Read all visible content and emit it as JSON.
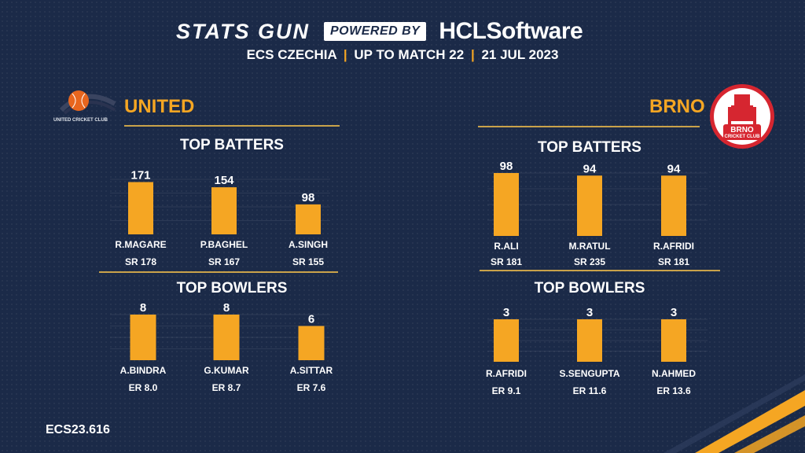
{
  "header": {
    "brand": "STATS GUN",
    "powered_by": "POWERED BY",
    "sponsor": "HCLSoftware",
    "subtitle_parts": [
      "ECS CZECHIA",
      "UP TO MATCH 22",
      "21 JUL 2023"
    ],
    "separator": "|"
  },
  "teams": {
    "left": {
      "name": "UNITED",
      "logo_text": "UNITED CRICKET CLUB"
    },
    "right": {
      "name": "BRNO",
      "logo_text_top": "BRNO",
      "logo_text_bottom": "CRICKET CLUB"
    }
  },
  "sections": {
    "batters_title": "TOP BATTERS",
    "bowlers_title": "TOP BOWLERS"
  },
  "footer": {
    "code": "ECS23.616"
  },
  "colors": {
    "background": "#1b2a48",
    "bar": "#f5a623",
    "accent": "#f5a623",
    "rule": "#c9a24a"
  },
  "chart_data": [
    {
      "type": "bar",
      "team": "UNITED",
      "title": "TOP BATTERS",
      "categories": [
        "R.MAGARE",
        "P.BAGHEL",
        "A.SINGH"
      ],
      "values": [
        171,
        154,
        98
      ],
      "sublabels": [
        "SR 178",
        "SR 167",
        "SR 155"
      ],
      "ylim": [
        0,
        180
      ],
      "grid": true
    },
    {
      "type": "bar",
      "team": "UNITED",
      "title": "TOP BOWLERS",
      "categories": [
        "A.BINDRA",
        "G.KUMAR",
        "A.SITTAR"
      ],
      "values": [
        8,
        8,
        6
      ],
      "sublabels": [
        "ER 8.0",
        "ER 8.7",
        "ER 7.6"
      ],
      "ylim": [
        0,
        8
      ],
      "grid": true
    },
    {
      "type": "bar",
      "team": "BRNO",
      "title": "TOP BATTERS",
      "categories": [
        "R.ALI",
        "M.RATUL",
        "R.AFRIDI"
      ],
      "values": [
        98,
        94,
        94
      ],
      "sublabels": [
        "SR 181",
        "SR 235",
        "SR 181"
      ],
      "ylim": [
        0,
        98
      ],
      "grid": true
    },
    {
      "type": "bar",
      "team": "BRNO",
      "title": "TOP BOWLERS",
      "categories": [
        "R.AFRIDI",
        "S.SENGUPTA",
        "N.AHMED"
      ],
      "values": [
        3,
        3,
        3
      ],
      "sublabels": [
        "ER 9.1",
        "ER 11.6",
        "ER 13.6"
      ],
      "ylim": [
        0,
        3
      ],
      "grid": true
    }
  ]
}
